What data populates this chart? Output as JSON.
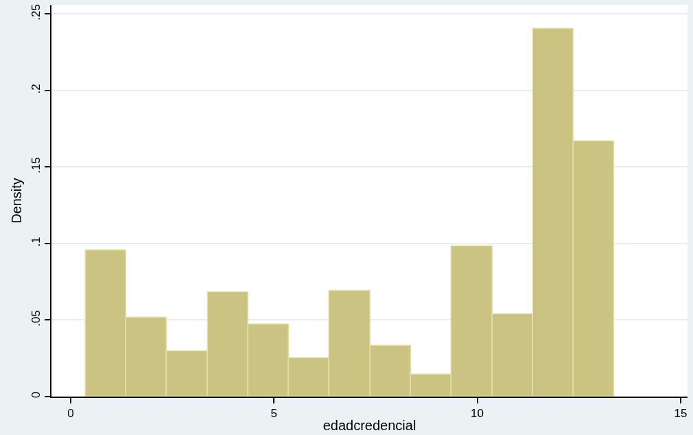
{
  "chart_data": {
    "type": "histogram",
    "xlabel": "edadcredencial",
    "ylabel": "Density",
    "bins": [
      0.37,
      1.37,
      2.37,
      3.37,
      4.37,
      5.37,
      6.37,
      7.37,
      8.37,
      9.37,
      10.37,
      11.37,
      12.37,
      13.37
    ],
    "values": [
      0.0957,
      0.0514,
      0.0296,
      0.0682,
      0.0472,
      0.0251,
      0.0692,
      0.033,
      0.0143,
      0.098,
      0.0537,
      0.2404,
      0.1666
    ],
    "color": "#cbc381",
    "xlim": [
      -0.47,
      15.17
    ],
    "xticks": [
      0,
      5,
      10,
      15
    ],
    "ylim": [
      0,
      0.256
    ],
    "yticks": [
      {
        "value": 0,
        "label": "0"
      },
      {
        "value": 0.05,
        "label": ".05"
      },
      {
        "value": 0.1,
        "label": ".1"
      },
      {
        "value": 0.15,
        "label": ".15"
      },
      {
        "value": 0.2,
        "label": ".2"
      },
      {
        "value": 0.25,
        "label": ".25"
      }
    ],
    "grid": "y"
  }
}
